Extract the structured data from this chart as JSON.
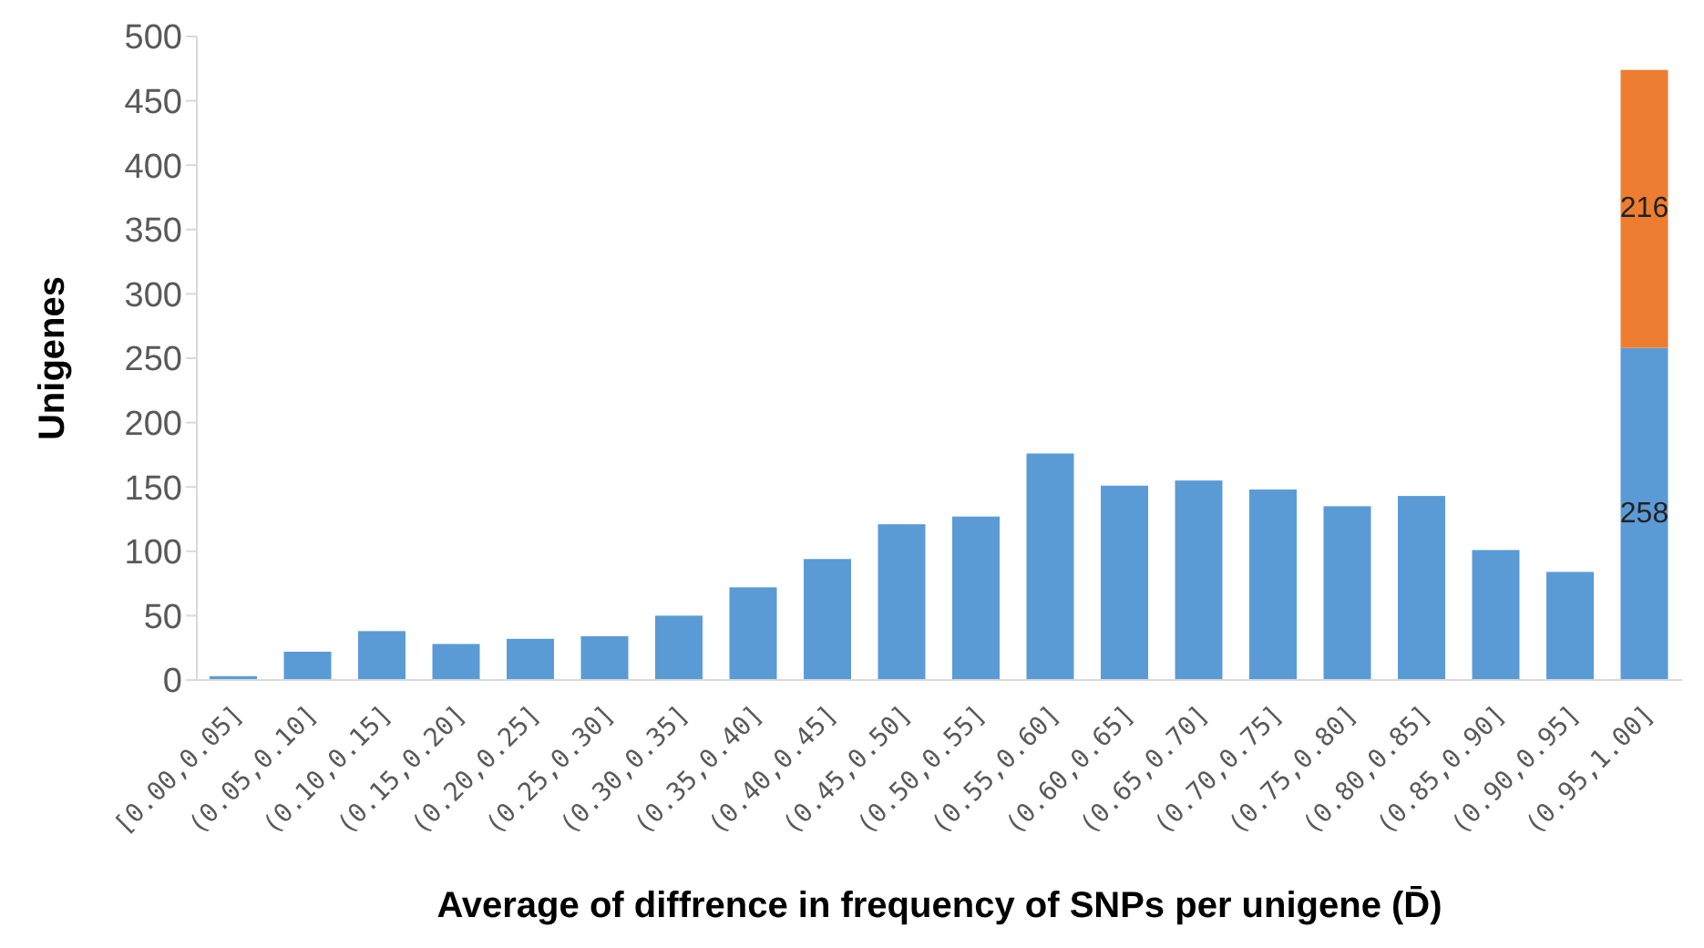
{
  "chart_data": {
    "type": "bar",
    "stacked": true,
    "xlabel": "Average of diffrence in frequency of SNPs per unigene (D̄)",
    "ylabel": "Unigenes",
    "categories": [
      "[0.00,0.05]",
      "(0.05,0.10]",
      "(0.10,0.15]",
      "(0.15,0.20]",
      "(0.20,0.25]",
      "(0.25,0.30]",
      "(0.30,0.35]",
      "(0.35,0.40]",
      "(0.40,0.45]",
      "(0.45,0.50]",
      "(0.50,0.55]",
      "(0.55,0.60]",
      "(0.60,0.65]",
      "(0.65,0.70]",
      "(0.70,0.75]",
      "(0.75,0.80]",
      "(0.80,0.85]",
      "(0.85,0.90]",
      "(0.90,0.95]",
      "(0.95,1.00]"
    ],
    "series": [
      {
        "color": "#5b9bd5",
        "values": [
          3,
          22,
          38,
          28,
          32,
          34,
          50,
          72,
          94,
          121,
          127,
          176,
          151,
          155,
          148,
          135,
          143,
          101,
          84,
          258
        ],
        "value_labels": [
          null,
          null,
          null,
          null,
          null,
          null,
          null,
          null,
          null,
          null,
          null,
          null,
          null,
          null,
          null,
          null,
          null,
          null,
          null,
          "258"
        ]
      },
      {
        "color": "#ed7d31",
        "values": [
          null,
          null,
          null,
          null,
          null,
          null,
          null,
          null,
          null,
          null,
          null,
          null,
          null,
          null,
          null,
          null,
          null,
          null,
          null,
          216
        ],
        "value_labels": [
          null,
          null,
          null,
          null,
          null,
          null,
          null,
          null,
          null,
          null,
          null,
          null,
          null,
          null,
          null,
          null,
          null,
          null,
          null,
          "216"
        ]
      }
    ],
    "ylim": [
      0,
      500
    ],
    "yticks": [
      0,
      50,
      100,
      150,
      200,
      250,
      300,
      350,
      400,
      450,
      500
    ],
    "grid": false
  }
}
